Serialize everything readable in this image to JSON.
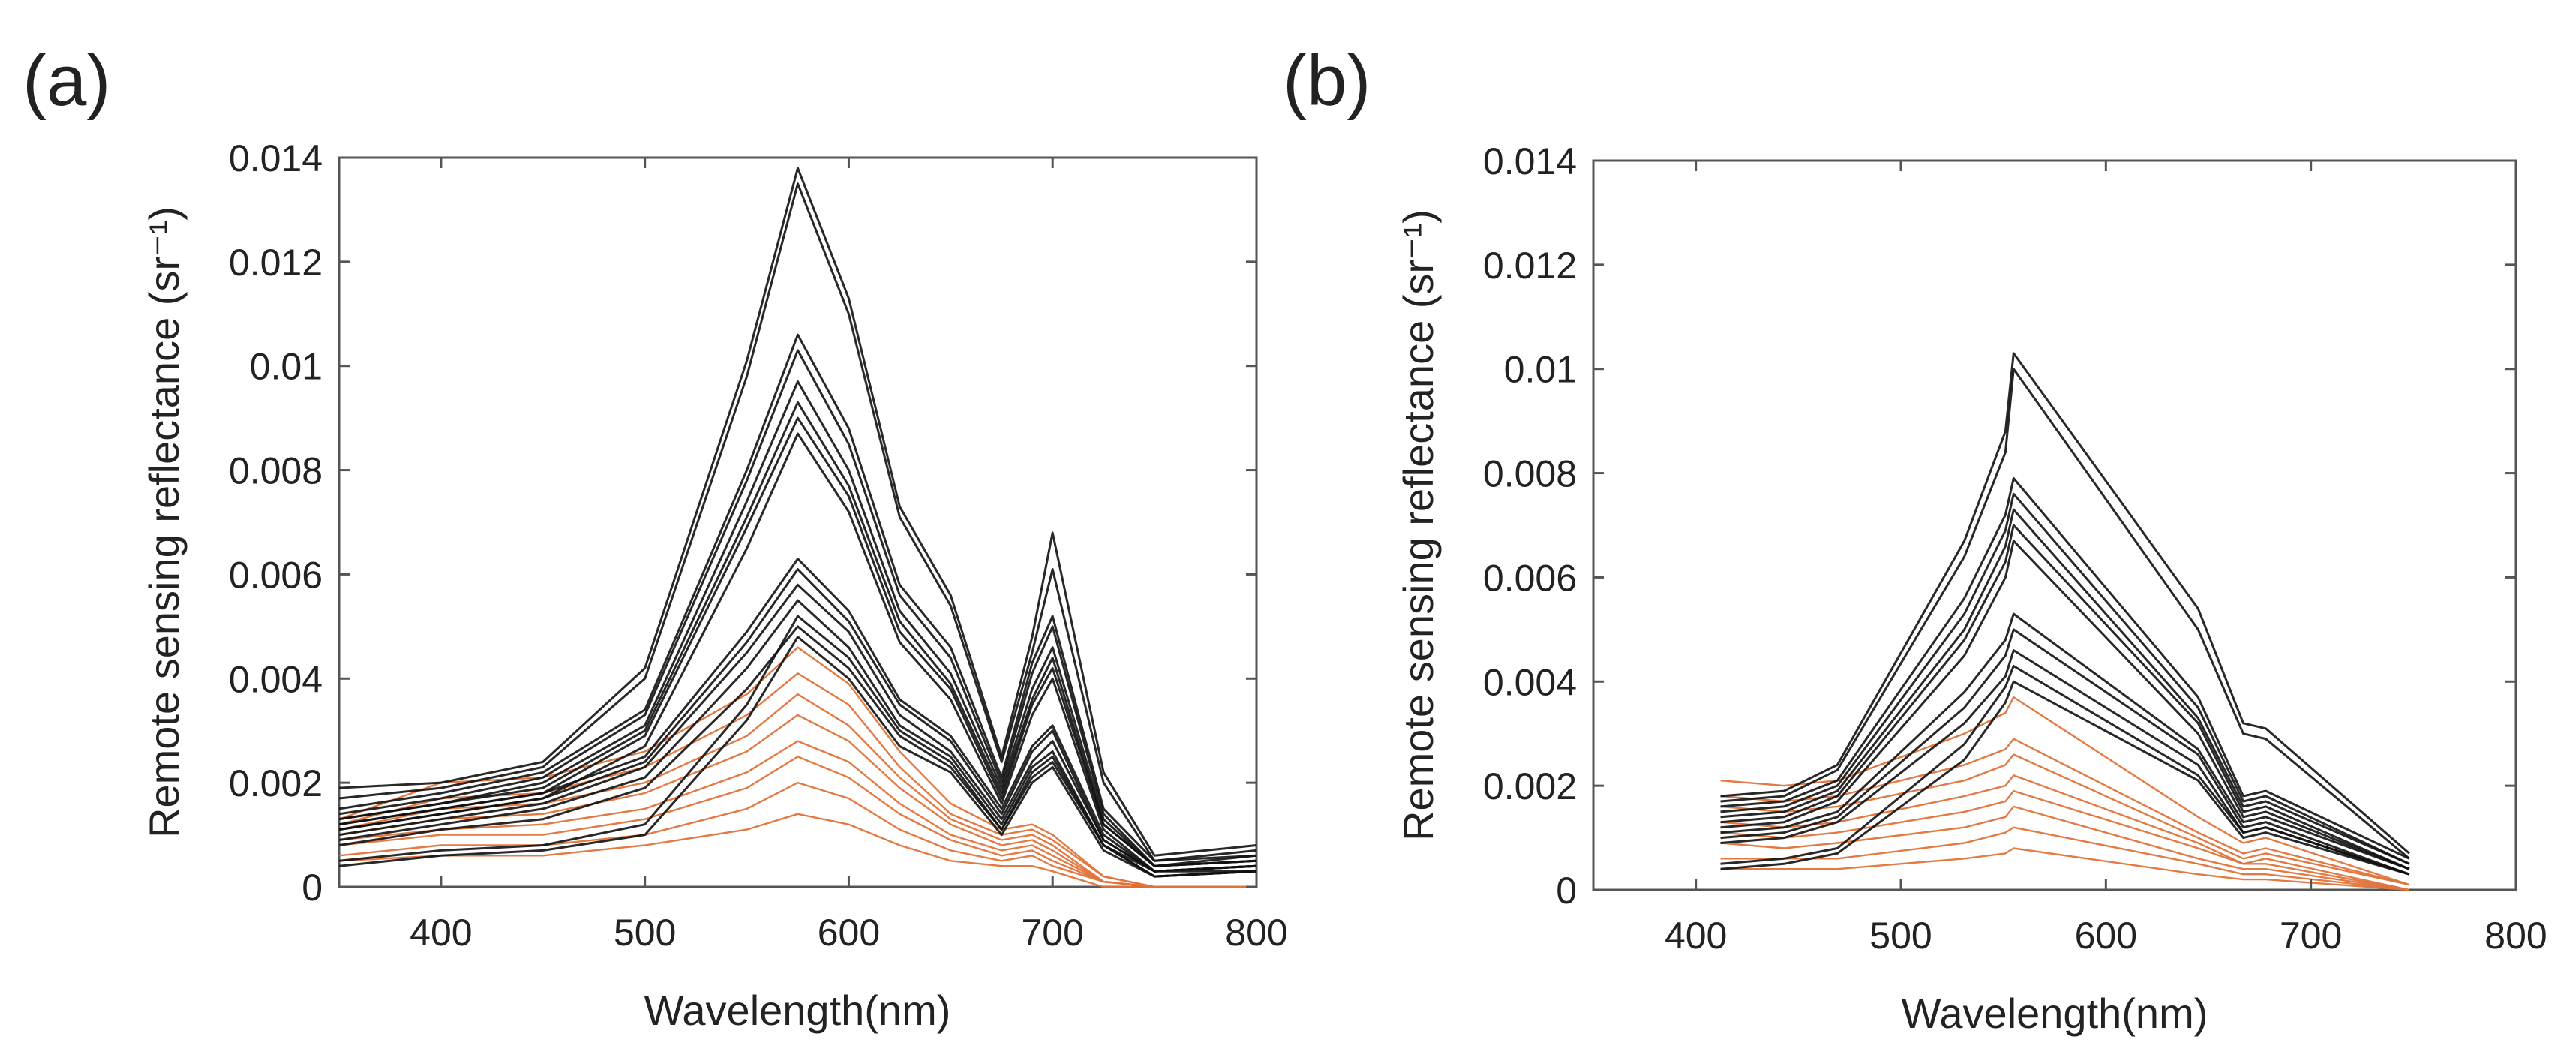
{
  "figure": {
    "panel_labels": [
      "(a)",
      "(b)"
    ]
  },
  "colors": {
    "black_series": "#111111",
    "orange_series": "#e0733a",
    "axis": "#555555"
  },
  "chart_data": [
    {
      "type": "line",
      "panel": "(a)",
      "title": "",
      "xlabel": "Wavelength(nm)",
      "ylabel": "Remote sensing reflectance (sr⁻¹)",
      "xlim": [
        350,
        800
      ],
      "ylim": [
        0,
        0.014
      ],
      "xticks": [
        400,
        500,
        600,
        700,
        800
      ],
      "xtick_labels": [
        "400",
        "500",
        "600",
        "700",
        "800"
      ],
      "yticks": [
        0,
        0.002,
        0.004,
        0.006,
        0.008,
        0.01,
        0.012,
        0.014
      ],
      "ytick_labels": [
        "0",
        "0.002",
        "0.004",
        "0.006",
        "0.008",
        "0.01",
        "0.012",
        "0.014"
      ],
      "grid": false,
      "x": [
        350,
        400,
        450,
        500,
        550,
        575,
        600,
        625,
        650,
        675,
        690,
        700,
        725,
        750,
        800
      ],
      "series": [
        {
          "group": "black",
          "values": [
            0.0019,
            0.002,
            0.0024,
            0.0042,
            0.0101,
            0.0138,
            0.0113,
            0.0073,
            0.0056,
            0.0025,
            0.0048,
            0.0068,
            0.0022,
            0.0006,
            0.0008
          ]
        },
        {
          "group": "black",
          "values": [
            0.0017,
            0.0019,
            0.0023,
            0.004,
            0.0098,
            0.0135,
            0.011,
            0.0071,
            0.0054,
            0.0024,
            0.0045,
            0.0061,
            0.002,
            0.0005,
            0.0007
          ]
        },
        {
          "group": "black",
          "values": [
            0.0015,
            0.0018,
            0.0022,
            0.0034,
            0.008,
            0.0106,
            0.0088,
            0.0058,
            0.0046,
            0.0021,
            0.0043,
            0.0052,
            0.0015,
            0.0005,
            0.0006
          ]
        },
        {
          "group": "black",
          "values": [
            0.0014,
            0.0017,
            0.0021,
            0.0033,
            0.0078,
            0.0103,
            0.0085,
            0.0056,
            0.0044,
            0.002,
            0.0041,
            0.005,
            0.0014,
            0.0004,
            0.0006
          ]
        },
        {
          "group": "black",
          "values": [
            0.0013,
            0.0016,
            0.002,
            0.0031,
            0.0074,
            0.0097,
            0.008,
            0.0053,
            0.0041,
            0.0019,
            0.0038,
            0.0046,
            0.0013,
            0.0004,
            0.0005
          ]
        },
        {
          "group": "black",
          "values": [
            0.0013,
            0.0016,
            0.0019,
            0.003,
            0.0071,
            0.0093,
            0.0077,
            0.0051,
            0.0039,
            0.0018,
            0.0036,
            0.0044,
            0.0012,
            0.0004,
            0.0005
          ]
        },
        {
          "group": "black",
          "values": [
            0.0012,
            0.0015,
            0.0018,
            0.0029,
            0.0069,
            0.009,
            0.0075,
            0.0049,
            0.0038,
            0.0017,
            0.0035,
            0.0042,
            0.0012,
            0.0004,
            0.0005
          ]
        },
        {
          "group": "black",
          "values": [
            0.0011,
            0.0014,
            0.0017,
            0.0027,
            0.0065,
            0.0087,
            0.0072,
            0.0047,
            0.0036,
            0.0016,
            0.0033,
            0.004,
            0.0011,
            0.0003,
            0.0004
          ]
        },
        {
          "group": "black",
          "values": [
            0.0012,
            0.0015,
            0.0018,
            0.0025,
            0.0049,
            0.0063,
            0.0053,
            0.0036,
            0.0029,
            0.0015,
            0.0027,
            0.0031,
            0.001,
            0.0003,
            0.0004
          ]
        },
        {
          "group": "black",
          "values": [
            0.0011,
            0.0014,
            0.0017,
            0.0024,
            0.0047,
            0.0061,
            0.0051,
            0.0035,
            0.0028,
            0.0014,
            0.0026,
            0.003,
            0.0009,
            0.0003,
            0.0004
          ]
        },
        {
          "group": "black",
          "values": [
            0.001,
            0.0013,
            0.0016,
            0.0023,
            0.0045,
            0.0058,
            0.0049,
            0.0033,
            0.0026,
            0.0013,
            0.0024,
            0.0028,
            0.0009,
            0.0003,
            0.0004
          ]
        },
        {
          "group": "black",
          "values": [
            0.0009,
            0.0012,
            0.0015,
            0.0021,
            0.0042,
            0.0055,
            0.0046,
            0.0031,
            0.0025,
            0.0012,
            0.0023,
            0.0026,
            0.0008,
            0.0003,
            0.0003
          ]
        },
        {
          "group": "black",
          "values": [
            0.0008,
            0.0011,
            0.0013,
            0.0019,
            0.0038,
            0.005,
            0.0042,
            0.0029,
            0.0023,
            0.0011,
            0.0021,
            0.0024,
            0.0008,
            0.0002,
            0.0003
          ]
        },
        {
          "group": "black",
          "values": [
            0.0005,
            0.0007,
            0.0008,
            0.0012,
            0.0035,
            0.0052,
            0.0044,
            0.003,
            0.0024,
            0.0011,
            0.0022,
            0.0025,
            0.0008,
            0.0002,
            0.0003
          ]
        },
        {
          "group": "black",
          "values": [
            0.0004,
            0.0006,
            0.0007,
            0.001,
            0.0032,
            0.0048,
            0.004,
            0.0027,
            0.0022,
            0.001,
            0.002,
            0.0023,
            0.0007,
            0.0002,
            0.0003
          ]
        },
        {
          "group": "orange",
          "values": [
            0.0013,
            0.002,
            0.0021,
            0.0026,
            0.0037,
            0.0046,
            0.0039,
            0.0026,
            0.0016,
            0.0011,
            0.0012,
            0.001,
            0.0002,
            0.0,
            0.0
          ]
        },
        {
          "group": "orange",
          "values": [
            0.0012,
            0.0017,
            0.0018,
            0.0023,
            0.0033,
            0.0041,
            0.0035,
            0.0023,
            0.0014,
            0.001,
            0.0011,
            0.0009,
            0.0002,
            0.0,
            0.0
          ]
        },
        {
          "group": "orange",
          "values": [
            0.0011,
            0.0015,
            0.0016,
            0.002,
            0.0029,
            0.0037,
            0.0031,
            0.0021,
            0.0013,
            0.0009,
            0.001,
            0.0008,
            0.0001,
            0.0,
            0.0
          ]
        },
        {
          "group": "orange",
          "values": [
            0.001,
            0.0013,
            0.0014,
            0.0018,
            0.0026,
            0.0033,
            0.0028,
            0.0019,
            0.0012,
            0.0008,
            0.0009,
            0.0007,
            0.0001,
            0.0,
            0.0
          ]
        },
        {
          "group": "orange",
          "values": [
            0.0009,
            0.0011,
            0.0012,
            0.0015,
            0.0022,
            0.0028,
            0.0024,
            0.0016,
            0.001,
            0.0007,
            0.0008,
            0.0006,
            0.0001,
            0.0,
            0.0
          ]
        },
        {
          "group": "orange",
          "values": [
            0.0008,
            0.001,
            0.001,
            0.0013,
            0.0019,
            0.0025,
            0.0021,
            0.0014,
            0.0009,
            0.0006,
            0.0007,
            0.0005,
            0.0001,
            0.0,
            0.0
          ]
        },
        {
          "group": "orange",
          "values": [
            0.0006,
            0.0008,
            0.0008,
            0.001,
            0.0015,
            0.002,
            0.0017,
            0.0011,
            0.0007,
            0.0005,
            0.0006,
            0.0004,
            0.0001,
            0.0,
            0.0
          ]
        },
        {
          "group": "orange",
          "values": [
            0.0005,
            0.0006,
            0.0006,
            0.0008,
            0.0011,
            0.0014,
            0.0012,
            0.0008,
            0.0005,
            0.0004,
            0.0004,
            0.0003,
            0.0,
            0.0,
            0.0
          ]
        }
      ]
    },
    {
      "type": "line",
      "panel": "(b)",
      "title": "",
      "xlabel": "Wavelength(nm)",
      "ylabel": "Remote sensing reflectance (sr⁻¹)",
      "xlim": [
        350,
        800
      ],
      "ylim": [
        0,
        0.014
      ],
      "xticks": [
        400,
        500,
        600,
        700,
        800
      ],
      "xtick_labels": [
        "400",
        "500",
        "600",
        "700",
        "800"
      ],
      "yticks": [
        0,
        0.002,
        0.004,
        0.006,
        0.008,
        0.01,
        0.012,
        0.014
      ],
      "ytick_labels": [
        "0",
        "0.002",
        "0.004",
        "0.006",
        "0.008",
        "0.01",
        "0.012",
        "0.014"
      ],
      "grid": false,
      "x": [
        412,
        443,
        469,
        531,
        551,
        555,
        645,
        667,
        678,
        748
      ],
      "series": [
        {
          "group": "black",
          "values": [
            0.0018,
            0.0019,
            0.0024,
            0.0067,
            0.0088,
            0.0103,
            0.0054,
            0.0032,
            0.0031,
            0.0007
          ]
        },
        {
          "group": "black",
          "values": [
            0.0017,
            0.0018,
            0.0023,
            0.0064,
            0.0084,
            0.01,
            0.005,
            0.003,
            0.0029,
            0.0006
          ]
        },
        {
          "group": "black",
          "values": [
            0.0016,
            0.0017,
            0.0021,
            0.0056,
            0.0072,
            0.0079,
            0.0037,
            0.0018,
            0.0019,
            0.0006
          ]
        },
        {
          "group": "black",
          "values": [
            0.0015,
            0.0016,
            0.002,
            0.0053,
            0.0069,
            0.0076,
            0.0035,
            0.0017,
            0.0018,
            0.0005
          ]
        },
        {
          "group": "black",
          "values": [
            0.0014,
            0.0015,
            0.0019,
            0.005,
            0.0066,
            0.0073,
            0.0033,
            0.0016,
            0.0017,
            0.0005
          ]
        },
        {
          "group": "black",
          "values": [
            0.0013,
            0.0014,
            0.0018,
            0.0048,
            0.0063,
            0.007,
            0.0032,
            0.0015,
            0.0016,
            0.0004
          ]
        },
        {
          "group": "black",
          "values": [
            0.0012,
            0.0013,
            0.0017,
            0.0045,
            0.006,
            0.0067,
            0.003,
            0.0014,
            0.0015,
            0.0004
          ]
        },
        {
          "group": "black",
          "values": [
            0.0011,
            0.0012,
            0.0015,
            0.0038,
            0.0048,
            0.0053,
            0.0027,
            0.0013,
            0.0014,
            0.0004
          ]
        },
        {
          "group": "black",
          "values": [
            0.001,
            0.0011,
            0.0014,
            0.0035,
            0.0045,
            0.005,
            0.0026,
            0.0012,
            0.0013,
            0.0003
          ]
        },
        {
          "group": "black",
          "values": [
            0.0009,
            0.001,
            0.0013,
            0.0032,
            0.0041,
            0.0046,
            0.0024,
            0.0011,
            0.0012,
            0.0003
          ]
        },
        {
          "group": "black",
          "values": [
            0.0005,
            0.0006,
            0.0008,
            0.0028,
            0.0039,
            0.0043,
            0.0022,
            0.0011,
            0.0012,
            0.0003
          ]
        },
        {
          "group": "black",
          "values": [
            0.0004,
            0.0005,
            0.0007,
            0.0025,
            0.0036,
            0.004,
            0.0021,
            0.001,
            0.0011,
            0.0003
          ]
        },
        {
          "group": "orange",
          "values": [
            0.0021,
            0.002,
            0.0021,
            0.003,
            0.0034,
            0.0037,
            0.0014,
            0.0009,
            0.001,
            0.0001
          ]
        },
        {
          "group": "orange",
          "values": [
            0.0018,
            0.0017,
            0.0018,
            0.0024,
            0.0027,
            0.0029,
            0.0011,
            0.0007,
            0.0008,
            0.0001
          ]
        },
        {
          "group": "orange",
          "values": [
            0.0016,
            0.0015,
            0.0016,
            0.0021,
            0.0024,
            0.0026,
            0.001,
            0.0006,
            0.0007,
            0.0001
          ]
        },
        {
          "group": "orange",
          "values": [
            0.0013,
            0.0012,
            0.0013,
            0.0018,
            0.002,
            0.0022,
            0.0009,
            0.0005,
            0.0006,
            0.0
          ]
        },
        {
          "group": "orange",
          "values": [
            0.0011,
            0.001,
            0.0011,
            0.0015,
            0.0017,
            0.0019,
            0.0008,
            0.0005,
            0.0005,
            0.0
          ]
        },
        {
          "group": "orange",
          "values": [
            0.0009,
            0.0008,
            0.0009,
            0.0012,
            0.0014,
            0.0016,
            0.0006,
            0.0004,
            0.0004,
            0.0
          ]
        },
        {
          "group": "orange",
          "values": [
            0.0006,
            0.0006,
            0.0006,
            0.0009,
            0.0011,
            0.0012,
            0.0005,
            0.0003,
            0.0003,
            0.0
          ]
        },
        {
          "group": "orange",
          "values": [
            0.0004,
            0.0004,
            0.0004,
            0.0006,
            0.0007,
            0.0008,
            0.0003,
            0.0002,
            0.0002,
            0.0
          ]
        }
      ]
    }
  ]
}
